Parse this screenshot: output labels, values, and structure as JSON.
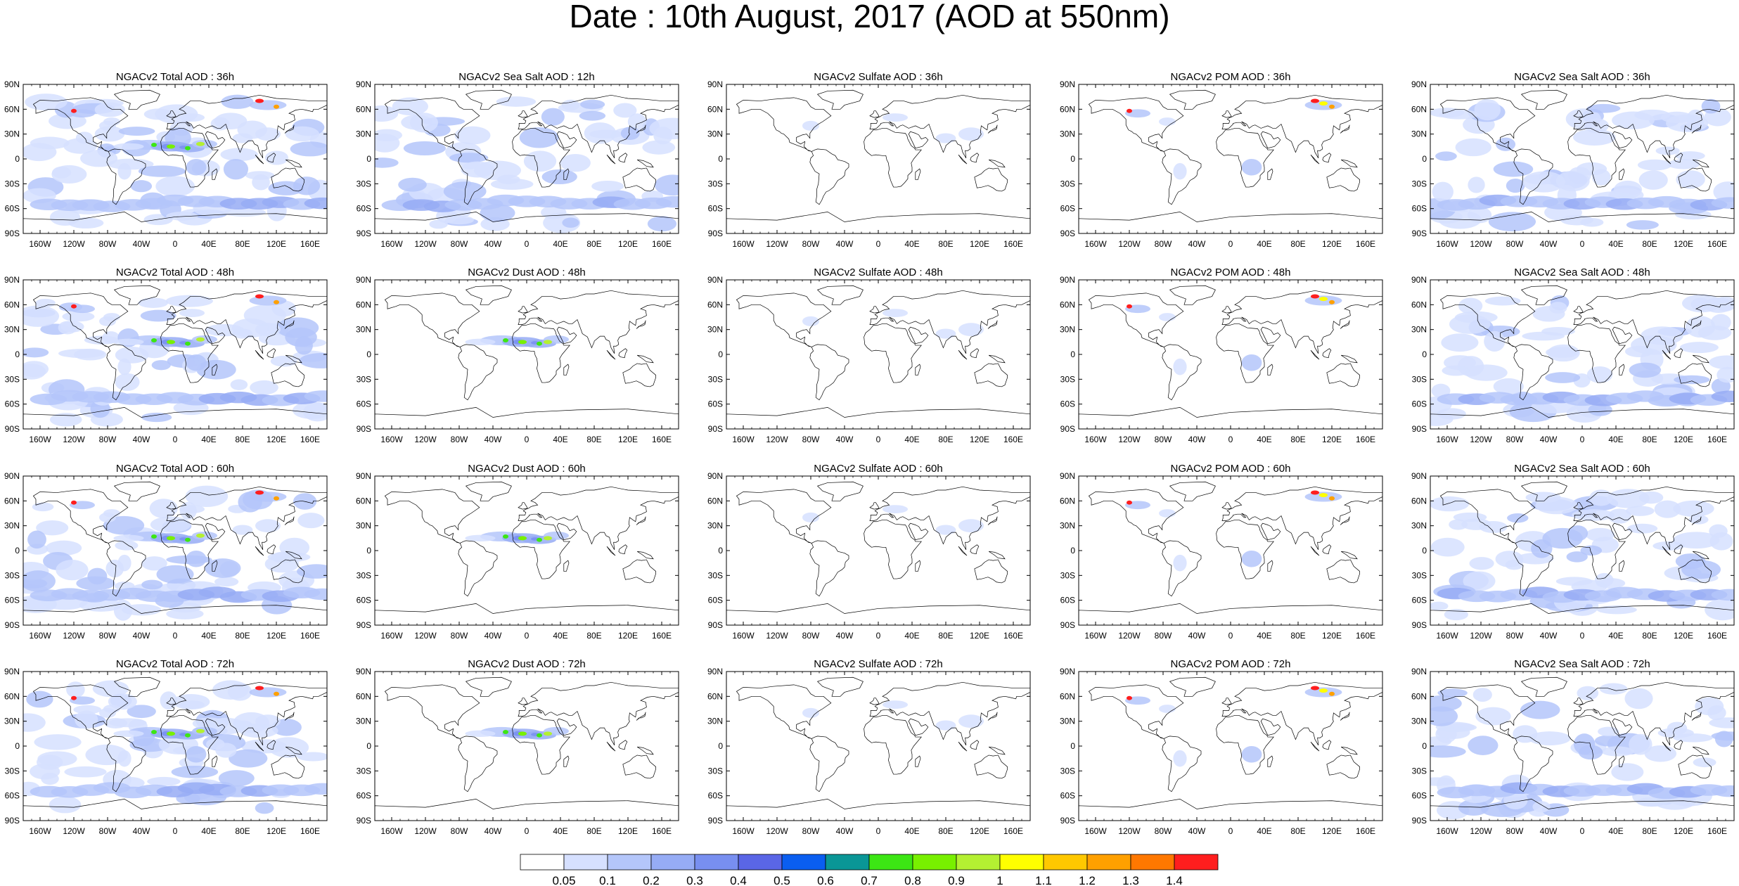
{
  "title": "Date : 10th August, 2017 (AOD at 550nm)",
  "map": {
    "projection": "cylindrical-equidistant",
    "lat_ticks": [
      "90N",
      "60N",
      "30N",
      "0",
      "30S",
      "60S",
      "90S"
    ],
    "lon_ticks": [
      "160W",
      "120W",
      "80W",
      "40W",
      "0",
      "40E",
      "80E",
      "120E",
      "160E"
    ]
  },
  "panels": [
    {
      "title": "NGACv2 Total AOD : 36h"
    },
    {
      "title": "NGACv2 Sea Salt  AOD : 12h"
    },
    {
      "title": "NGACv2 Sulfate AOD : 36h"
    },
    {
      "title": "NGACv2 POM AOD : 36h"
    },
    {
      "title": "NGACv2 Sea Salt AOD : 36h"
    },
    {
      "title": "NGACv2 Total AOD : 48h"
    },
    {
      "title": "NGACv2 Dust AOD : 48h"
    },
    {
      "title": "NGACv2 Sulfate AOD : 48h"
    },
    {
      "title": "NGACv2 POM AOD : 48h"
    },
    {
      "title": "NGACv2 Sea Salt AOD : 48h"
    },
    {
      "title": "NGACv2 Total AOD : 60h"
    },
    {
      "title": "NGACv2 Dust AOD : 60h"
    },
    {
      "title": "NGACv2 Sulfate AOD : 60h"
    },
    {
      "title": "NGACv2 POM AOD : 60h"
    },
    {
      "title": "NGACv2 Sea Salt AOD : 60h"
    },
    {
      "title": "NGACv2 Total AOD : 72h"
    },
    {
      "title": "NGACv2 Dust AOD : 72h"
    },
    {
      "title": "NGACv2 Sulfate AOD : 72h"
    },
    {
      "title": "NGACv2 POM AOD : 72h"
    },
    {
      "title": "NGACv2 Sea Salt  AOD : 72h"
    }
  ],
  "colorbar": {
    "labels": [
      "0.05",
      "0.1",
      "0.2",
      "0.3",
      "0.4",
      "0.5",
      "0.6",
      "0.7",
      "0.8",
      "0.9",
      "1",
      "1.1",
      "1.2",
      "1.3",
      "1.4"
    ],
    "colors": [
      "#ffffff",
      "#d6e0ff",
      "#b4c6fa",
      "#96acf5",
      "#788ff0",
      "#5a66e6",
      "#0a5ef0",
      "#0a9696",
      "#3ce614",
      "#78f000",
      "#b4f032",
      "#ffff00",
      "#ffc800",
      "#ffa000",
      "#ff7800",
      "#ff1e1e"
    ]
  }
}
